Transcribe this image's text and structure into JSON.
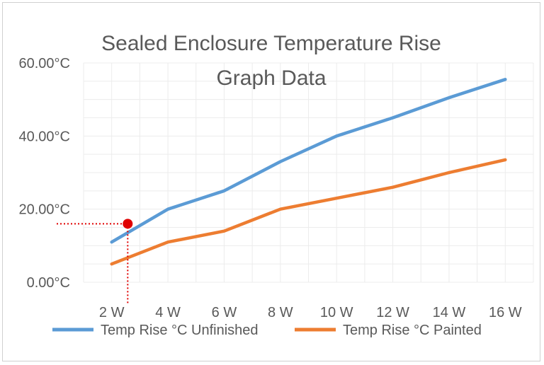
{
  "chart_data": {
    "type": "line",
    "title_lines": [
      "Sealed Enclosure Temperature Rise",
      "Graph Data"
    ],
    "categories": [
      "2 W",
      "4 W",
      "6 W",
      "8 W",
      "10 W",
      "12 W",
      "14 W",
      "16 W"
    ],
    "ylim": [
      0,
      60
    ],
    "y_ticks": [
      "0.00°C",
      "20.00°C",
      "40.00°C",
      "60.00°C"
    ],
    "y_tick_values": [
      0,
      20,
      40,
      60
    ],
    "grid": true,
    "legend_position": "bottom",
    "series": [
      {
        "name": "Temp Rise °C Unfinished",
        "color": "#5b9bd5",
        "values": [
          11,
          20,
          25,
          33,
          40,
          45,
          50.5,
          55.5
        ]
      },
      {
        "name": "Temp Rise °C Painted",
        "color": "#ed7d31",
        "values": [
          5,
          11,
          14,
          20,
          23,
          26,
          30,
          33.5
        ]
      }
    ],
    "annotation": {
      "color": "#e00000",
      "x_category_index": 0.5,
      "y": 16
    }
  }
}
